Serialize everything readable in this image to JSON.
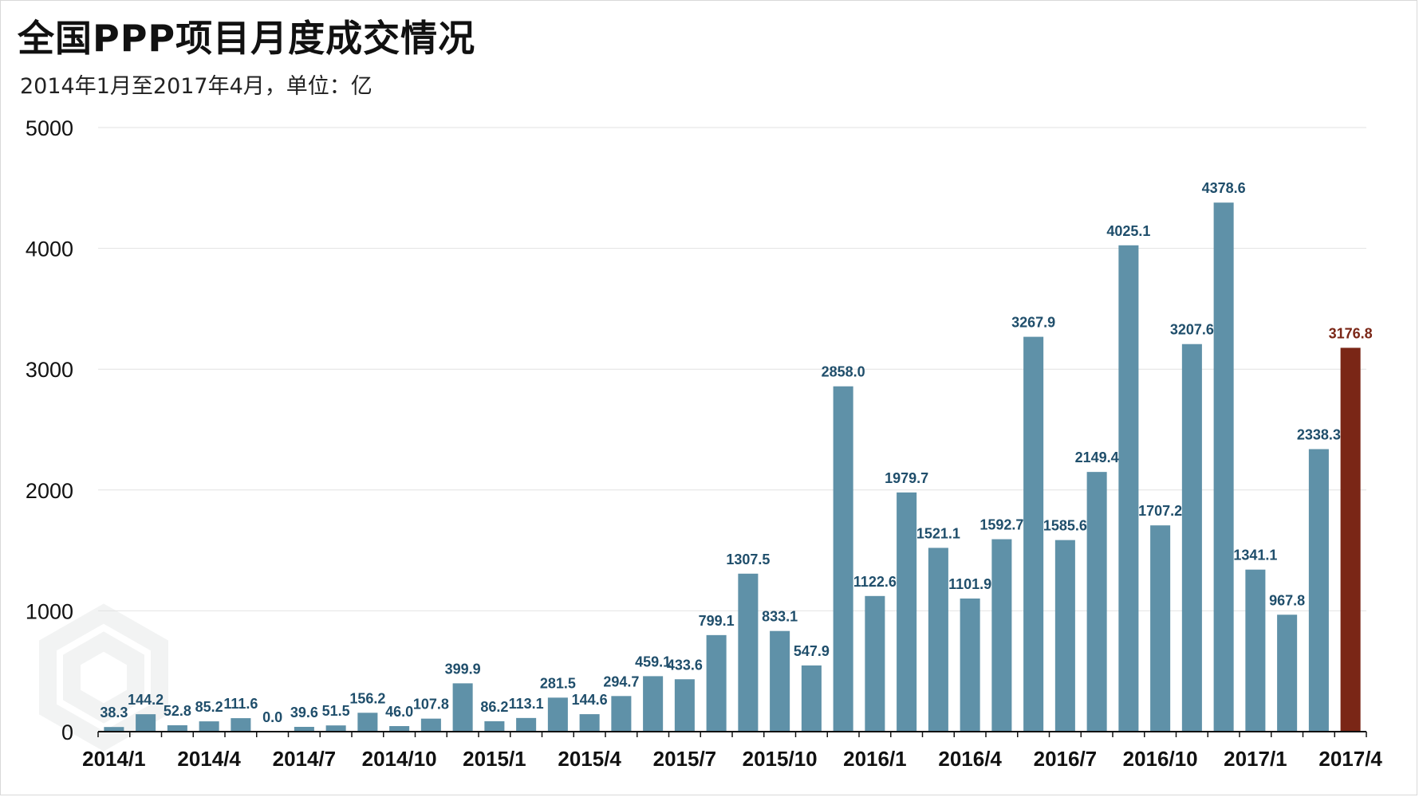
{
  "title": "全国PPP项目月度成交情况",
  "subtitle": "2014年1月至2017年4月，单位：亿",
  "chart_data": {
    "type": "bar",
    "title": "全国PPP项目月度成交情况",
    "subtitle": "2014年1月至2017年4月，单位：亿",
    "xlabel": "",
    "ylabel": "",
    "ylim": [
      0,
      5000
    ],
    "yticks": [
      0,
      1000,
      2000,
      3000,
      4000,
      5000
    ],
    "ytick_labels": [
      "0",
      "1000",
      "2000",
      "3000",
      "4000",
      "5000"
    ],
    "grid": true,
    "legend": "none",
    "categories": [
      "2014/1",
      "2014/2",
      "2014/3",
      "2014/4",
      "2014/5",
      "2014/6",
      "2014/7",
      "2014/8",
      "2014/9",
      "2014/10",
      "2014/11",
      "2014/12",
      "2015/1",
      "2015/2",
      "2015/3",
      "2015/4",
      "2015/5",
      "2015/6",
      "2015/7",
      "2015/8",
      "2015/9",
      "2015/10",
      "2015/11",
      "2015/12",
      "2016/1",
      "2016/2",
      "2016/3",
      "2016/4",
      "2016/5",
      "2016/6",
      "2016/7",
      "2016/8",
      "2016/9",
      "2016/10",
      "2016/11",
      "2016/12",
      "2017/1",
      "2017/2",
      "2017/3",
      "2017/4"
    ],
    "xtick_labels": [
      "2014/1",
      "2014/4",
      "2014/7",
      "2014/10",
      "2015/1",
      "2015/4",
      "2015/7",
      "2015/10",
      "2016/1",
      "2016/4",
      "2016/7",
      "2016/10",
      "2017/1",
      "2017/4"
    ],
    "values": [
      38.3,
      144.2,
      52.8,
      85.2,
      111.6,
      0.0,
      39.6,
      51.5,
      156.2,
      46.0,
      107.8,
      399.9,
      86.2,
      113.1,
      281.5,
      144.6,
      294.7,
      459.1,
      433.6,
      799.1,
      1307.5,
      833.1,
      547.9,
      2858.0,
      1122.6,
      1979.7,
      1521.1,
      1101.9,
      1592.7,
      3267.9,
      1585.6,
      2149.4,
      4025.1,
      1707.2,
      3207.6,
      4378.6,
      1341.1,
      967.8,
      2338.3,
      3176.8
    ],
    "value_labels": [
      "38.3",
      "144.2",
      "52.8",
      "85.2",
      "111.6",
      "0.0",
      "39.6",
      "51.5",
      "156.2",
      "46.0",
      "107.8",
      "399.9",
      "86.2",
      "113.1",
      "281.5",
      "144.6",
      "294.7",
      "459.1",
      "433.6",
      "799.1",
      "1307.5",
      "833.1",
      "547.9",
      "2858.0",
      "1122.6",
      "1979.7",
      "1521.1",
      "1101.9",
      "1592.7",
      "3267.9",
      "1585.6",
      "2149.4",
      "4025.1",
      "1707.2",
      "3207.6",
      "4378.6",
      "1341.1",
      "967.8",
      "2338.3",
      "3176.8"
    ],
    "colors": {
      "bar": "#5f91a8",
      "highlight_bar": "#7a2616",
      "label": "#1f4e6b",
      "highlight_label": "#7a2616",
      "grid": "#e2e2e2",
      "axis": "#111111"
    },
    "highlight_index": 39
  }
}
